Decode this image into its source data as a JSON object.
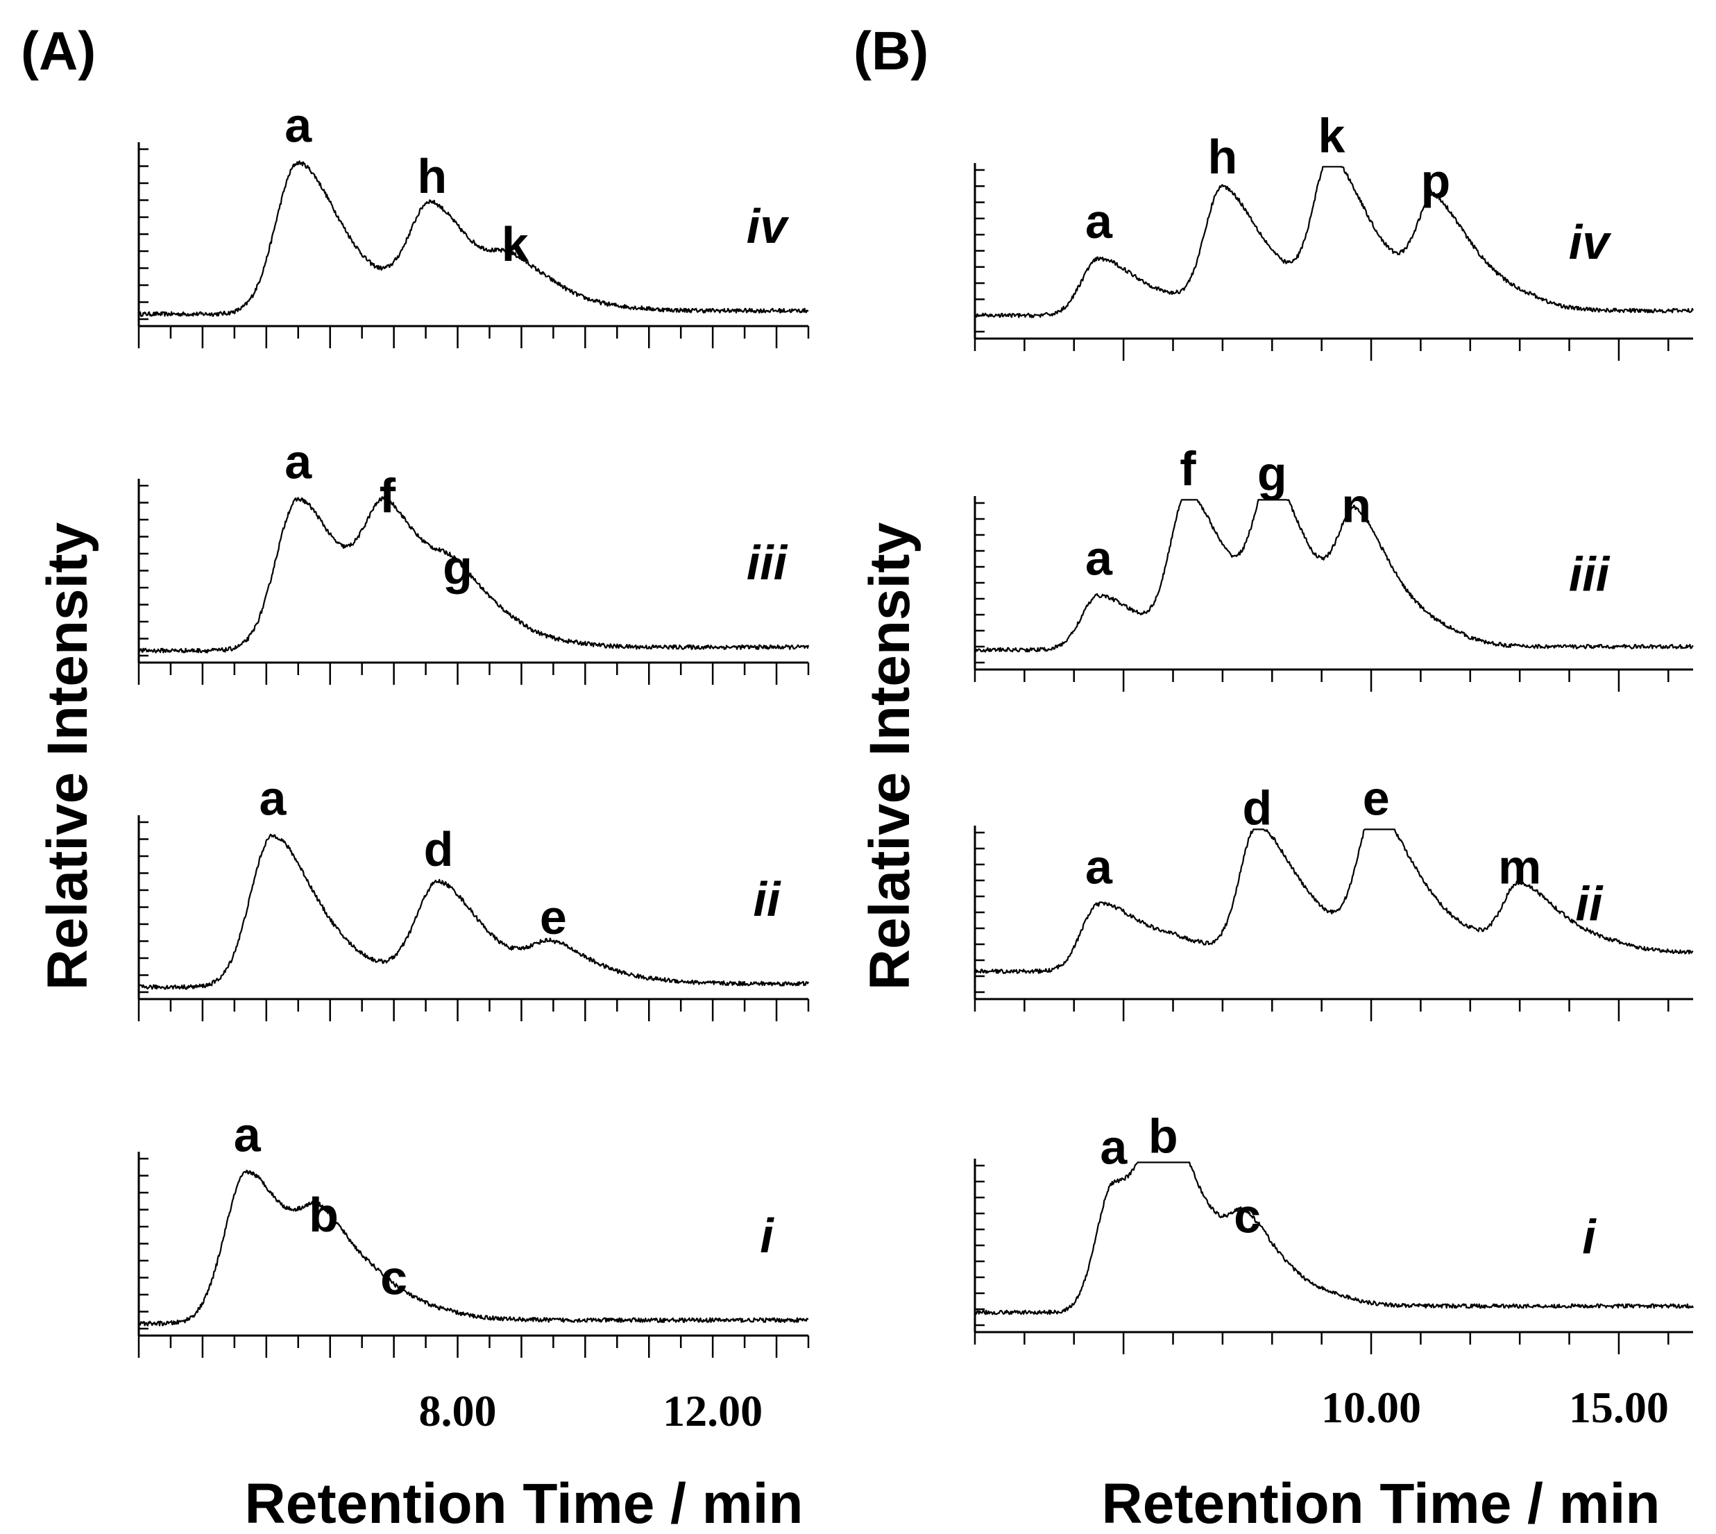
{
  "chart_data": [
    {
      "type": "line",
      "panel": "(A)",
      "ylabel": "Relative Intensity",
      "xlabel": "Retention Time / min",
      "xlim": [
        3.0,
        13.5
      ],
      "x_tick_labels": [
        {
          "value": 8.0,
          "label": "8.00"
        },
        {
          "value": 12.0,
          "label": "12.00"
        }
      ],
      "traces": [
        {
          "name": "iv",
          "baseline": 0.03,
          "tail": 0.05,
          "peaks": [
            {
              "label": "a",
              "rt": 5.5,
              "height": 0.92
            },
            {
              "label": "h",
              "rt": 7.6,
              "height": 0.62
            },
            {
              "label": "k",
              "rt": 8.9,
              "height": 0.22
            }
          ]
        },
        {
          "name": "iii",
          "baseline": 0.03,
          "tail": 0.05,
          "peaks": [
            {
              "label": "a",
              "rt": 5.5,
              "height": 0.92
            },
            {
              "label": "f",
              "rt": 6.9,
              "height": 0.72
            },
            {
              "label": "g",
              "rt": 8.0,
              "height": 0.3
            }
          ]
        },
        {
          "name": "ii",
          "baseline": 0.03,
          "tail": 0.05,
          "peaks": [
            {
              "label": "a",
              "rt": 5.1,
              "height": 0.92
            },
            {
              "label": "d",
              "rt": 7.7,
              "height": 0.62
            },
            {
              "label": "e",
              "rt": 9.5,
              "height": 0.22
            }
          ]
        },
        {
          "name": "i",
          "baseline": 0.03,
          "tail": 0.05,
          "peaks": [
            {
              "label": "a",
              "rt": 4.7,
              "height": 0.92
            },
            {
              "label": "b",
              "rt": 5.9,
              "height": 0.45
            },
            {
              "label": "c",
              "rt": 7.0,
              "height": 0.08
            }
          ]
        }
      ]
    },
    {
      "type": "line",
      "panel": "(B)",
      "ylabel": "Relative Intensity",
      "xlabel": "Retention Time / min",
      "xlim": [
        2.0,
        16.5
      ],
      "x_tick_labels": [
        {
          "value": 10.0,
          "label": "10.00"
        },
        {
          "value": 15.0,
          "label": "15.00"
        }
      ],
      "traces": [
        {
          "name": "iv",
          "baseline": 0.1,
          "tail": 0.13,
          "peaks": [
            {
              "label": "a",
              "rt": 4.5,
              "height": 0.45
            },
            {
              "label": "h",
              "rt": 7.0,
              "height": 0.85
            },
            {
              "label": "k",
              "rt": 9.2,
              "height": 0.98
            },
            {
              "label": "p",
              "rt": 11.3,
              "height": 0.7
            }
          ]
        },
        {
          "name": "iii",
          "baseline": 0.08,
          "tail": 0.1,
          "peaks": [
            {
              "label": "a",
              "rt": 4.5,
              "height": 0.42
            },
            {
              "label": "f",
              "rt": 6.3,
              "height": 0.98
            },
            {
              "label": "g",
              "rt": 8.0,
              "height": 0.95
            },
            {
              "label": "n",
              "rt": 9.7,
              "height": 0.75
            }
          ]
        },
        {
          "name": "ii",
          "baseline": 0.13,
          "tail": 0.25,
          "peaks": [
            {
              "label": "a",
              "rt": 4.5,
              "height": 0.55
            },
            {
              "label": "d",
              "rt": 7.7,
              "height": 0.92
            },
            {
              "label": "e",
              "rt": 10.1,
              "height": 0.98
            },
            {
              "label": "m",
              "rt": 13.0,
              "height": 0.55
            }
          ]
        },
        {
          "name": "i",
          "baseline": 0.08,
          "tail": 0.12,
          "peaks": [
            {
              "label": "a",
              "rt": 4.8,
              "height": 0.88
            },
            {
              "label": "b",
              "rt": 5.8,
              "height": 0.95
            },
            {
              "label": "c",
              "rt": 7.5,
              "height": 0.45
            }
          ]
        }
      ]
    }
  ]
}
